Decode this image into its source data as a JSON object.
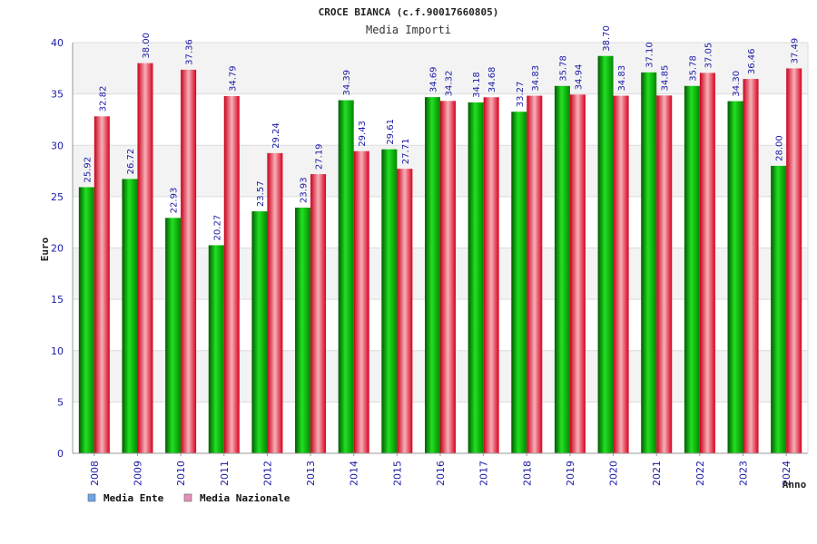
{
  "chart_data": {
    "type": "bar",
    "title": "CROCE BIANCA (c.f.90017660805)",
    "subtitle": "Media Importi",
    "xlabel": "Anno",
    "ylabel": "Euro",
    "ylim": [
      0,
      40
    ],
    "yticks": [
      0,
      5,
      10,
      15,
      20,
      25,
      30,
      35,
      40
    ],
    "grid": true,
    "legend_position": "bottom-left",
    "categories": [
      "2008",
      "2009",
      "2010",
      "2011",
      "2012",
      "2013",
      "2014",
      "2015",
      "2016",
      "2017",
      "2018",
      "2019",
      "2020",
      "2021",
      "2022",
      "2023",
      "2024"
    ],
    "series": [
      {
        "name": "Media Ente",
        "color": "#00a000",
        "legend_color": "#6aa6ea",
        "values": [
          25.92,
          26.72,
          22.93,
          20.27,
          23.57,
          23.93,
          34.39,
          29.61,
          34.69,
          34.18,
          33.27,
          35.78,
          38.7,
          37.1,
          35.78,
          34.3,
          28.0
        ],
        "labels": [
          "25.92",
          "26.72",
          "22.93",
          "20.27",
          "23.57",
          "23.93",
          "34.39",
          "29.61",
          "34.69",
          "34.18",
          "33.27",
          "35.78",
          "38.70",
          "37.10",
          "35.78",
          "34.30",
          "28.00"
        ]
      },
      {
        "name": "Media Nazionale",
        "color": "#e8102a",
        "legend_color": "#e48fb8",
        "values": [
          32.82,
          38.0,
          37.36,
          34.79,
          29.24,
          27.19,
          29.43,
          27.71,
          34.32,
          34.68,
          34.83,
          34.94,
          34.83,
          34.85,
          37.05,
          36.46,
          37.49
        ],
        "labels": [
          "32.82",
          "38.00",
          "37.36",
          "34.79",
          "29.24",
          "27.19",
          "29.43",
          "27.71",
          "34.32",
          "34.68",
          "34.83",
          "34.94",
          "34.83",
          "34.85",
          "37.05",
          "36.46",
          "37.49"
        ]
      }
    ]
  }
}
